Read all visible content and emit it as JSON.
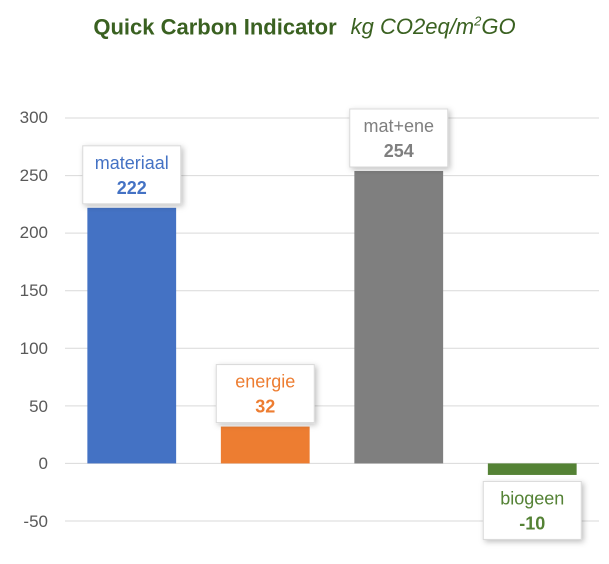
{
  "chart_data": {
    "type": "bar",
    "title": "Quick Carbon Indicator",
    "title_unit": "kg CO2eq/m",
    "title_unit_sup": "2",
    "title_unit_tail": "GO",
    "categories": [
      "materiaal",
      "energie",
      "mat+ene",
      "biogeen"
    ],
    "values": [
      222,
      32,
      254,
      -10
    ],
    "colors": [
      "#4472c4",
      "#ed7d31",
      "#7f7f7f",
      "#548235"
    ],
    "data_labels": [
      "222",
      "32",
      "254",
      "-10"
    ],
    "ylim": [
      -50,
      300
    ],
    "yticks": [
      300,
      250,
      200,
      150,
      100,
      50,
      0,
      -50
    ],
    "grid": true,
    "xlabel": "",
    "ylabel": ""
  }
}
